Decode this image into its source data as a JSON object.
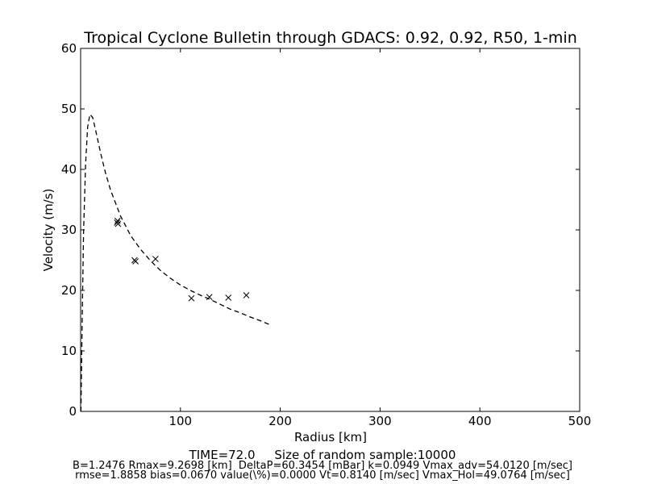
{
  "chart_data": {
    "type": "line",
    "title": "Tropical Cyclone Bulletin through GDACS: 0.92, 0.92, R50, 1-min",
    "xlabel": "Radius [km]",
    "ylabel": "Velocity (m/s)",
    "xlim": [
      0,
      500
    ],
    "ylim": [
      0,
      60
    ],
    "xticks": [
      100,
      200,
      300,
      400,
      500
    ],
    "yticks": [
      0,
      10,
      20,
      30,
      40,
      50,
      60
    ],
    "grid": false,
    "legend": "none",
    "series": [
      {
        "style": "dashed-line",
        "color": "#000000",
        "x": [
          0.3,
          1.5,
          3,
          5,
          7,
          9.27,
          12,
          15,
          20,
          25,
          30,
          40,
          50,
          60,
          70,
          80,
          90,
          100,
          110,
          120,
          130,
          140,
          150,
          160,
          170,
          180,
          190
        ],
        "y": [
          0,
          15,
          30,
          41,
          47,
          49.1,
          48.6,
          46.5,
          42.7,
          39.4,
          36.6,
          32.3,
          29.1,
          26.8,
          24.9,
          23.3,
          22.0,
          20.9,
          20.0,
          19.2,
          18.5,
          17.7,
          16.9,
          16.3,
          15.6,
          15.0,
          14.3
        ]
      },
      {
        "style": "x-markers",
        "color": "#000000",
        "x": [
          36.5,
          37,
          37.5,
          54,
          55,
          75,
          111,
          129,
          148,
          166
        ],
        "y": [
          31.2,
          31.5,
          31.0,
          25.0,
          24.8,
          25.2,
          18.7,
          18.9,
          18.8,
          19.2
        ]
      }
    ]
  },
  "footer": {
    "time_text": "TIME=72.0     Size of random sample:10000",
    "params_text": "B=1.2476 Rmax=9.2698 [km]  DeltaP=60.3454 [mBar] k=0.0949 Vmax_adv=54.0120 [m/sec]",
    "stats_text": "rmse=1.8858 bias=0.0670 value(\\%)=0.0000 Vt=0.8140 [m/sec] Vmax_Hol=49.0764 [m/sec]"
  }
}
